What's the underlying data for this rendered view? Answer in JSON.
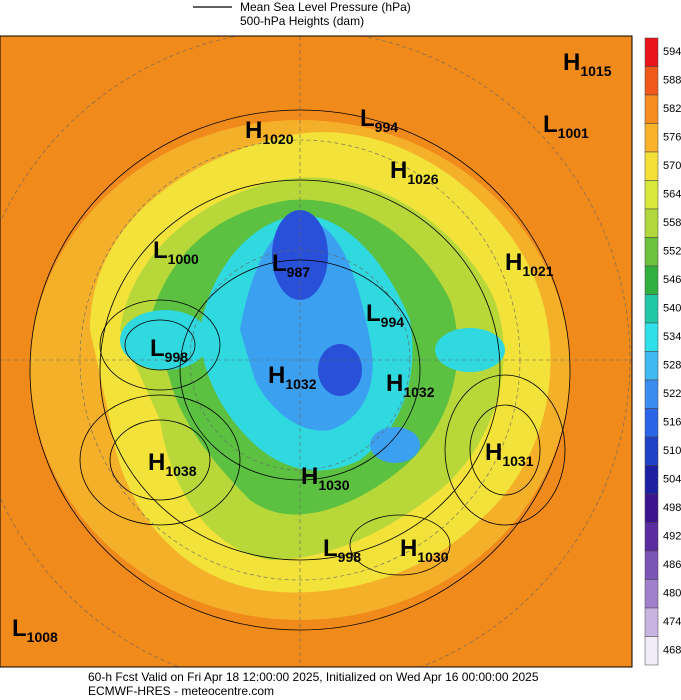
{
  "header": {
    "line_label": "Mean Sea Level Pressure (hPa)",
    "heights_label": "500-hPa Heights (dam)"
  },
  "colorbar": {
    "levels": [
      594,
      588,
      582,
      576,
      570,
      564,
      558,
      552,
      546,
      540,
      534,
      528,
      522,
      516,
      510,
      504,
      498,
      492,
      486,
      480,
      474,
      468
    ],
    "colors": [
      "#e8141a",
      "#f0581a",
      "#f58c1e",
      "#f9b22a",
      "#f5e03a",
      "#d8e83a",
      "#b0d83a",
      "#6cc23c",
      "#30b040",
      "#20c8a8",
      "#30e0e8",
      "#40b8f0",
      "#3c8cf0",
      "#2c64e8",
      "#2040c8",
      "#1c20a0",
      "#3c1490",
      "#5a2ca0",
      "#7c54b8",
      "#a080cc",
      "#c8b4e0",
      "#f0ecf8"
    ]
  },
  "centers": [
    {
      "kind": "H",
      "value": 1015
    },
    {
      "kind": "L",
      "value": 994
    },
    {
      "kind": "H",
      "value": 1020
    },
    {
      "kind": "L",
      "value": 1001
    },
    {
      "kind": "H",
      "value": 1026
    },
    {
      "kind": "L",
      "value": 1000
    },
    {
      "kind": "L",
      "value": 987
    },
    {
      "kind": "H",
      "value": 1021
    },
    {
      "kind": "L",
      "value": 994
    },
    {
      "kind": "L",
      "value": 998
    },
    {
      "kind": "H",
      "value": 1032
    },
    {
      "kind": "H",
      "value": 1032
    },
    {
      "kind": "H",
      "value": 1031
    },
    {
      "kind": "H",
      "value": 1038
    },
    {
      "kind": "H",
      "value": 1030
    },
    {
      "kind": "L",
      "value": 998
    },
    {
      "kind": "H",
      "value": 1030
    },
    {
      "kind": "L",
      "value": 1008
    }
  ],
  "footer": {
    "line1": "60-h Fcst Valid on Fri Apr 18 12:00:00 2025, Initialized on Wed Apr 16 00:00:00 2025",
    "line2": "ECMWF-HRES - meteocentre.com"
  }
}
